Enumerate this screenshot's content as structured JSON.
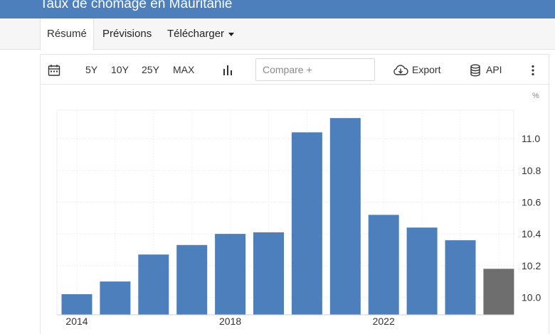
{
  "header": {
    "title": "Taux de chômage en Mauritanie"
  },
  "tabs": [
    {
      "label": "Résumé",
      "active": true
    },
    {
      "label": "Prévisions",
      "active": false
    },
    {
      "label": "Télécharger",
      "active": false,
      "dropdown": true
    }
  ],
  "toolbar": {
    "ranges": [
      "5Y",
      "10Y",
      "25Y",
      "MAX"
    ],
    "compare_placeholder": "Compare +",
    "export_label": "Export",
    "api_label": "API",
    "icons": {
      "calendar": "calendar-icon",
      "chart_type": "bar-chart-icon",
      "export": "cloud-download-icon",
      "api": "database-icon",
      "more": "more-vertical-icon"
    }
  },
  "chart_data": {
    "type": "bar",
    "unit": "%",
    "categories": [
      "2014",
      "2015",
      "2016",
      "2017",
      "2018",
      "2019",
      "2020",
      "2021",
      "2022",
      "2023",
      "2024",
      "2025"
    ],
    "values": [
      10.02,
      10.1,
      10.27,
      10.33,
      10.4,
      10.41,
      11.04,
      11.13,
      10.52,
      10.44,
      10.36,
      10.18
    ],
    "forecast_from_index": 11,
    "x_tick_labels": [
      "2014",
      "2018",
      "2022"
    ],
    "y_ticks": [
      10.0,
      10.2,
      10.4,
      10.6,
      10.8,
      11.0
    ],
    "ylim": [
      9.89,
      11.18
    ],
    "colors": {
      "bar": "#4e7fbd",
      "forecast": "#6e6e6e"
    },
    "grid": true,
    "title": "",
    "xlabel": "",
    "ylabel": ""
  }
}
